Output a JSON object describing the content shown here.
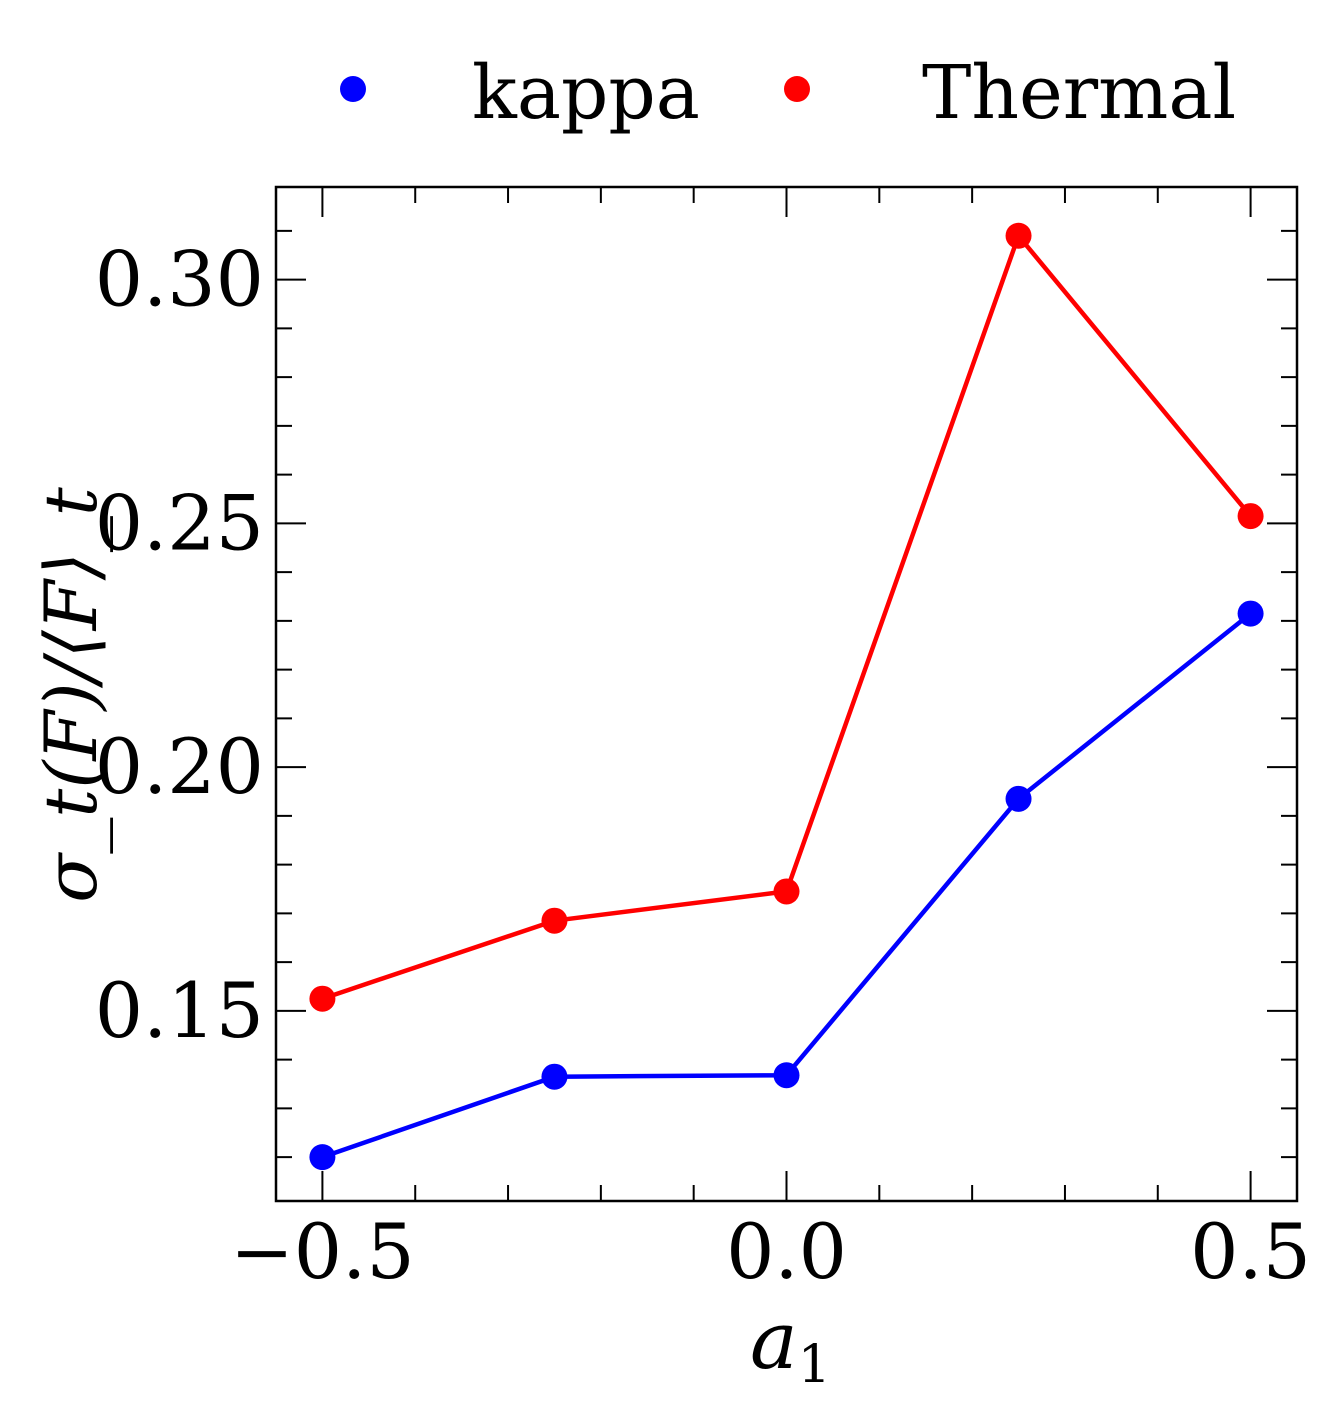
{
  "chart_data": {
    "type": "line",
    "title": "",
    "xlabel": "a",
    "xlabel_sub": "1",
    "ylabel": "σ_t(F)/⟨F⟩_t",
    "xlim": [
      -0.55,
      0.55
    ],
    "ylim": [
      0.111,
      0.319
    ],
    "x_ticks": [
      -0.5,
      0.0,
      0.5
    ],
    "x_tick_labels": [
      "−0.5",
      "0.0",
      "0.5"
    ],
    "x_minor_step": 0.1,
    "y_ticks": [
      0.15,
      0.2,
      0.25,
      0.3
    ],
    "y_tick_labels": [
      "0.15",
      "0.20",
      "0.25",
      "0.30"
    ],
    "y_minor_step": 0.01,
    "grid": false,
    "legend_position": "top",
    "x": [
      -0.5,
      -0.25,
      0.0,
      0.25,
      0.5
    ],
    "series": [
      {
        "name": "kappa",
        "color": "#0000ff",
        "values": [
          0.12,
          0.1365,
          0.1368,
          0.1935,
          0.2315
        ]
      },
      {
        "name": "Thermal",
        "color": "#ff0000",
        "values": [
          0.1525,
          0.1685,
          0.1745,
          0.309,
          0.2515
        ]
      }
    ]
  }
}
